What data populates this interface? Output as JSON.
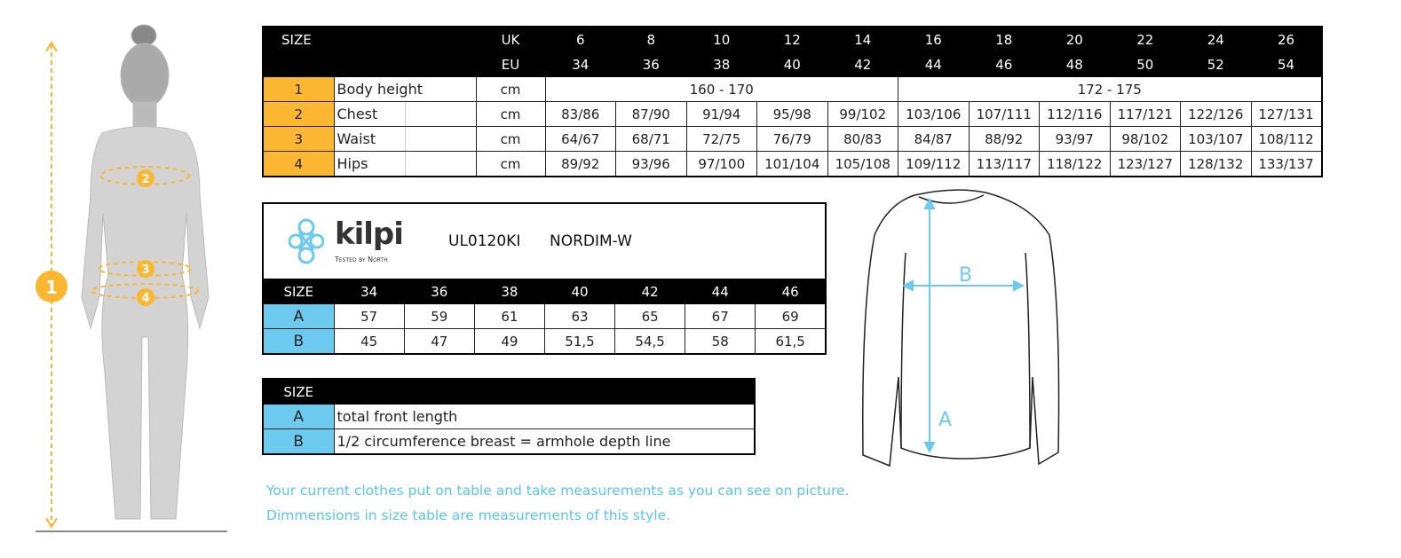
{
  "main_table": {
    "size_label": "SIZE",
    "uk_label": "UK",
    "eu_label": "EU",
    "uk_sizes": [
      "6",
      "8",
      "10",
      "12",
      "14",
      "16",
      "18",
      "20",
      "22",
      "24",
      "26"
    ],
    "eu_sizes": [
      "34",
      "36",
      "38",
      "40",
      "42",
      "44",
      "46",
      "48",
      "50",
      "52",
      "54"
    ],
    "rows": [
      {
        "num": "1",
        "label": "Body height",
        "unit": "cm",
        "spans": [
          "160 - 170",
          "172 - 175"
        ]
      },
      {
        "num": "2",
        "label": "Chest",
        "unit": "cm",
        "values": [
          "83/86",
          "87/90",
          "91/94",
          "95/98",
          "99/102",
          "103/106",
          "107/111",
          "112/116",
          "117/121",
          "122/126",
          "127/131"
        ]
      },
      {
        "num": "3",
        "label": "Waist",
        "unit": "cm",
        "values": [
          "64/67",
          "68/71",
          "72/75",
          "76/79",
          "80/83",
          "84/87",
          "88/92",
          "93/97",
          "98/102",
          "103/107",
          "108/112"
        ]
      },
      {
        "num": "4",
        "label": "Hips",
        "unit": "cm",
        "values": [
          "89/92",
          "93/96",
          "97/100",
          "101/104",
          "105/108",
          "109/112",
          "113/117",
          "118/122",
          "123/127",
          "128/132",
          "133/137"
        ]
      }
    ]
  },
  "product": {
    "brand": "kilpi",
    "tagline": "Tested by North",
    "code": "UL0120KI",
    "name": "NORDIM-W",
    "size_label": "SIZE",
    "sizes": [
      "34",
      "36",
      "38",
      "40",
      "42",
      "44",
      "46"
    ],
    "rows": [
      {
        "label": "A",
        "values": [
          "57",
          "59",
          "61",
          "63",
          "65",
          "67",
          "69"
        ]
      },
      {
        "label": "B",
        "values": [
          "45",
          "47",
          "49",
          "51,5",
          "54,5",
          "58",
          "61,5"
        ]
      }
    ]
  },
  "legend_table": {
    "size_label": "SIZE",
    "rows": [
      {
        "label": "A",
        "text": "total front length"
      },
      {
        "label": "B",
        "text": "1/2 circumference breast = armhole depth line"
      }
    ]
  },
  "figure_markers": [
    "1",
    "2",
    "3",
    "4"
  ],
  "shirt_markers": [
    "A",
    "B"
  ],
  "notes": [
    "Your current clothes put on table and take measurements as you can see on picture.",
    "Dimmensions in size table are measurements of this style."
  ],
  "colors": {
    "orange": "#fbb731",
    "blue": "#6ccaef",
    "note_text": "#5bc5ee"
  }
}
